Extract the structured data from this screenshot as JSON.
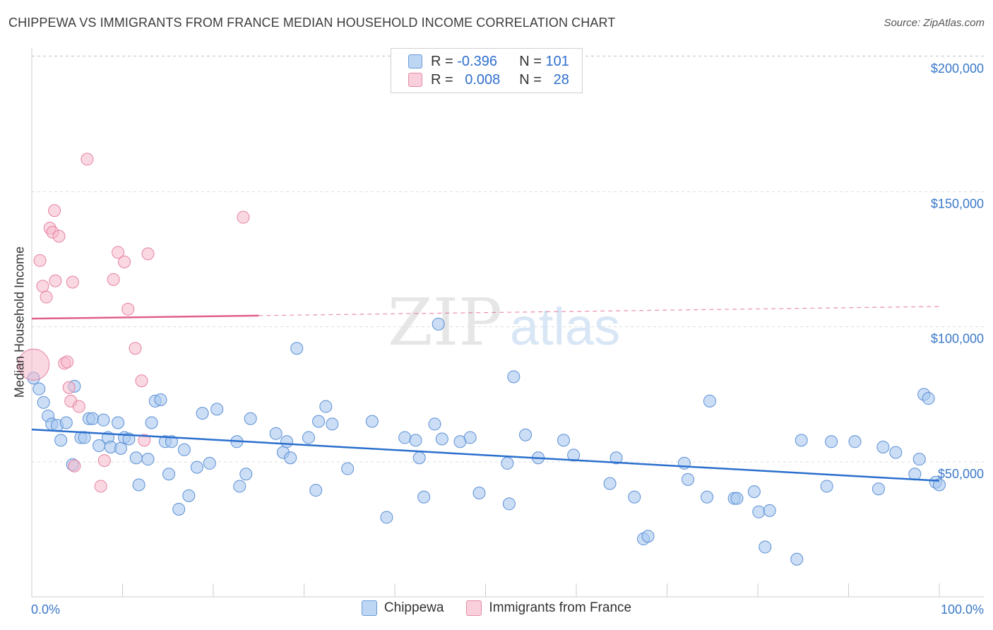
{
  "title": "CHIPPEWA VS IMMIGRANTS FROM FRANCE MEDIAN HOUSEHOLD INCOME CORRELATION CHART",
  "source": "Source: ZipAtlas.com",
  "watermark": {
    "zip": "ZIP",
    "atlas": "atlas"
  },
  "legend": {
    "rows": [
      {
        "r_label": "R =",
        "r_value": "-0.396",
        "n_label": "N =",
        "n_value": "101"
      },
      {
        "r_label": "R =",
        "r_value": "0.008",
        "n_label": "N =",
        "n_value": "28"
      }
    ]
  },
  "colors": {
    "blue_fill": "#a9c8ee",
    "blue_stroke": "#5b8fd6",
    "blue_line": "#2a6fcd",
    "pink_fill": "#f5b8cb",
    "pink_stroke": "#e582a2",
    "pink_line": "#e0608a",
    "axis_text": "#3a78c8"
  },
  "chart_data": {
    "type": "scatter",
    "xlabel": "",
    "ylabel": "Median Household Income",
    "xlim": [
      0,
      100
    ],
    "ylim": [
      10000,
      210000
    ],
    "x_tick_labels": [
      "0.0%",
      "100.0%"
    ],
    "y_ticks": [
      50000,
      100000,
      150000,
      200000
    ],
    "y_tick_labels": [
      "$50,000",
      "$100,000",
      "$150,000",
      "$200,000"
    ],
    "grid": true,
    "series": [
      {
        "name": "Chippewa",
        "trend": {
          "x0": 0,
          "y0": 62000,
          "x1": 100,
          "y1": 43000
        },
        "points": [
          [
            0.2,
            81000
          ],
          [
            0.8,
            77000
          ],
          [
            1.3,
            72000
          ],
          [
            1.8,
            67000
          ],
          [
            2.2,
            64000
          ],
          [
            2.8,
            63500
          ],
          [
            3.2,
            58000
          ],
          [
            3.8,
            64500
          ],
          [
            4.5,
            49000
          ],
          [
            4.7,
            78000
          ],
          [
            5.4,
            59000
          ],
          [
            5.8,
            59000
          ],
          [
            6.3,
            66000
          ],
          [
            6.7,
            66000
          ],
          [
            7.4,
            56000
          ],
          [
            7.9,
            65500
          ],
          [
            8.4,
            59000
          ],
          [
            8.7,
            55500
          ],
          [
            9.5,
            64500
          ],
          [
            9.8,
            55000
          ],
          [
            10.2,
            59000
          ],
          [
            10.7,
            58500
          ],
          [
            11.5,
            51500
          ],
          [
            11.8,
            41500
          ],
          [
            12.8,
            51000
          ],
          [
            13.2,
            64500
          ],
          [
            13.6,
            72500
          ],
          [
            14.2,
            73000
          ],
          [
            14.7,
            57500
          ],
          [
            15.1,
            45500
          ],
          [
            15.4,
            57500
          ],
          [
            16.2,
            32500
          ],
          [
            16.8,
            54500
          ],
          [
            17.3,
            37500
          ],
          [
            18.2,
            48000
          ],
          [
            18.8,
            68000
          ],
          [
            19.6,
            49500
          ],
          [
            20.4,
            69500
          ],
          [
            22.6,
            57500
          ],
          [
            22.9,
            41000
          ],
          [
            23.6,
            45500
          ],
          [
            24.1,
            66000
          ],
          [
            26.9,
            60500
          ],
          [
            27.7,
            53500
          ],
          [
            28.1,
            57500
          ],
          [
            28.5,
            51500
          ],
          [
            29.2,
            92000
          ],
          [
            30.5,
            59000
          ],
          [
            31.3,
            39500
          ],
          [
            31.6,
            65000
          ],
          [
            32.4,
            70500
          ],
          [
            33.1,
            64000
          ],
          [
            34.8,
            47500
          ],
          [
            37.5,
            65000
          ],
          [
            39.1,
            29500
          ],
          [
            41.1,
            59000
          ],
          [
            42.3,
            58000
          ],
          [
            42.7,
            51500
          ],
          [
            43.2,
            37000
          ],
          [
            44.4,
            64000
          ],
          [
            44.8,
            101000
          ],
          [
            45.2,
            58500
          ],
          [
            47.2,
            57500
          ],
          [
            48.3,
            59000
          ],
          [
            49.3,
            38500
          ],
          [
            52.4,
            49500
          ],
          [
            52.6,
            34500
          ],
          [
            53.1,
            81500
          ],
          [
            54.4,
            60000
          ],
          [
            55.8,
            51500
          ],
          [
            58.6,
            58000
          ],
          [
            59.7,
            52500
          ],
          [
            63.7,
            42000
          ],
          [
            64.4,
            51500
          ],
          [
            66.4,
            37000
          ],
          [
            67.4,
            21500
          ],
          [
            67.9,
            22500
          ],
          [
            71.9,
            49500
          ],
          [
            72.3,
            43500
          ],
          [
            74.4,
            37000
          ],
          [
            74.7,
            72500
          ],
          [
            77.4,
            36500
          ],
          [
            77.7,
            36500
          ],
          [
            79.6,
            39000
          ],
          [
            80.1,
            31500
          ],
          [
            80.8,
            18500
          ],
          [
            81.3,
            32000
          ],
          [
            84.3,
            14000
          ],
          [
            84.8,
            58000
          ],
          [
            87.6,
            41000
          ],
          [
            88.1,
            57500
          ],
          [
            90.7,
            57500
          ],
          [
            93.3,
            40000
          ],
          [
            93.8,
            55500
          ],
          [
            95.2,
            53500
          ],
          [
            97.3,
            45500
          ],
          [
            97.8,
            51000
          ],
          [
            98.3,
            75000
          ],
          [
            98.8,
            73500
          ],
          [
            99.6,
            42500
          ],
          [
            100,
            41500
          ]
        ]
      },
      {
        "name": "Immigrants from France",
        "trend": {
          "x0": 0,
          "y0": 103000,
          "x1": 100,
          "y1": 107500,
          "solid_until": 25
        },
        "points": [
          [
            0.2,
            86000
          ],
          [
            0.9,
            124500
          ],
          [
            1.2,
            115000
          ],
          [
            1.6,
            111000
          ],
          [
            2.0,
            136500
          ],
          [
            2.3,
            135000
          ],
          [
            2.5,
            143000
          ],
          [
            2.6,
            117000
          ],
          [
            3.0,
            133500
          ],
          [
            3.6,
            86500
          ],
          [
            3.9,
            87000
          ],
          [
            4.1,
            77500
          ],
          [
            4.3,
            72500
          ],
          [
            4.5,
            116500
          ],
          [
            4.7,
            48500
          ],
          [
            5.2,
            70500
          ],
          [
            6.1,
            162000
          ],
          [
            7.6,
            41000
          ],
          [
            8.0,
            50500
          ],
          [
            9.0,
            117500
          ],
          [
            9.5,
            127500
          ],
          [
            10.2,
            124000
          ],
          [
            10.6,
            106500
          ],
          [
            11.4,
            92000
          ],
          [
            12.1,
            80000
          ],
          [
            12.4,
            58000
          ],
          [
            12.8,
            127000
          ],
          [
            23.3,
            140500
          ]
        ]
      }
    ]
  }
}
